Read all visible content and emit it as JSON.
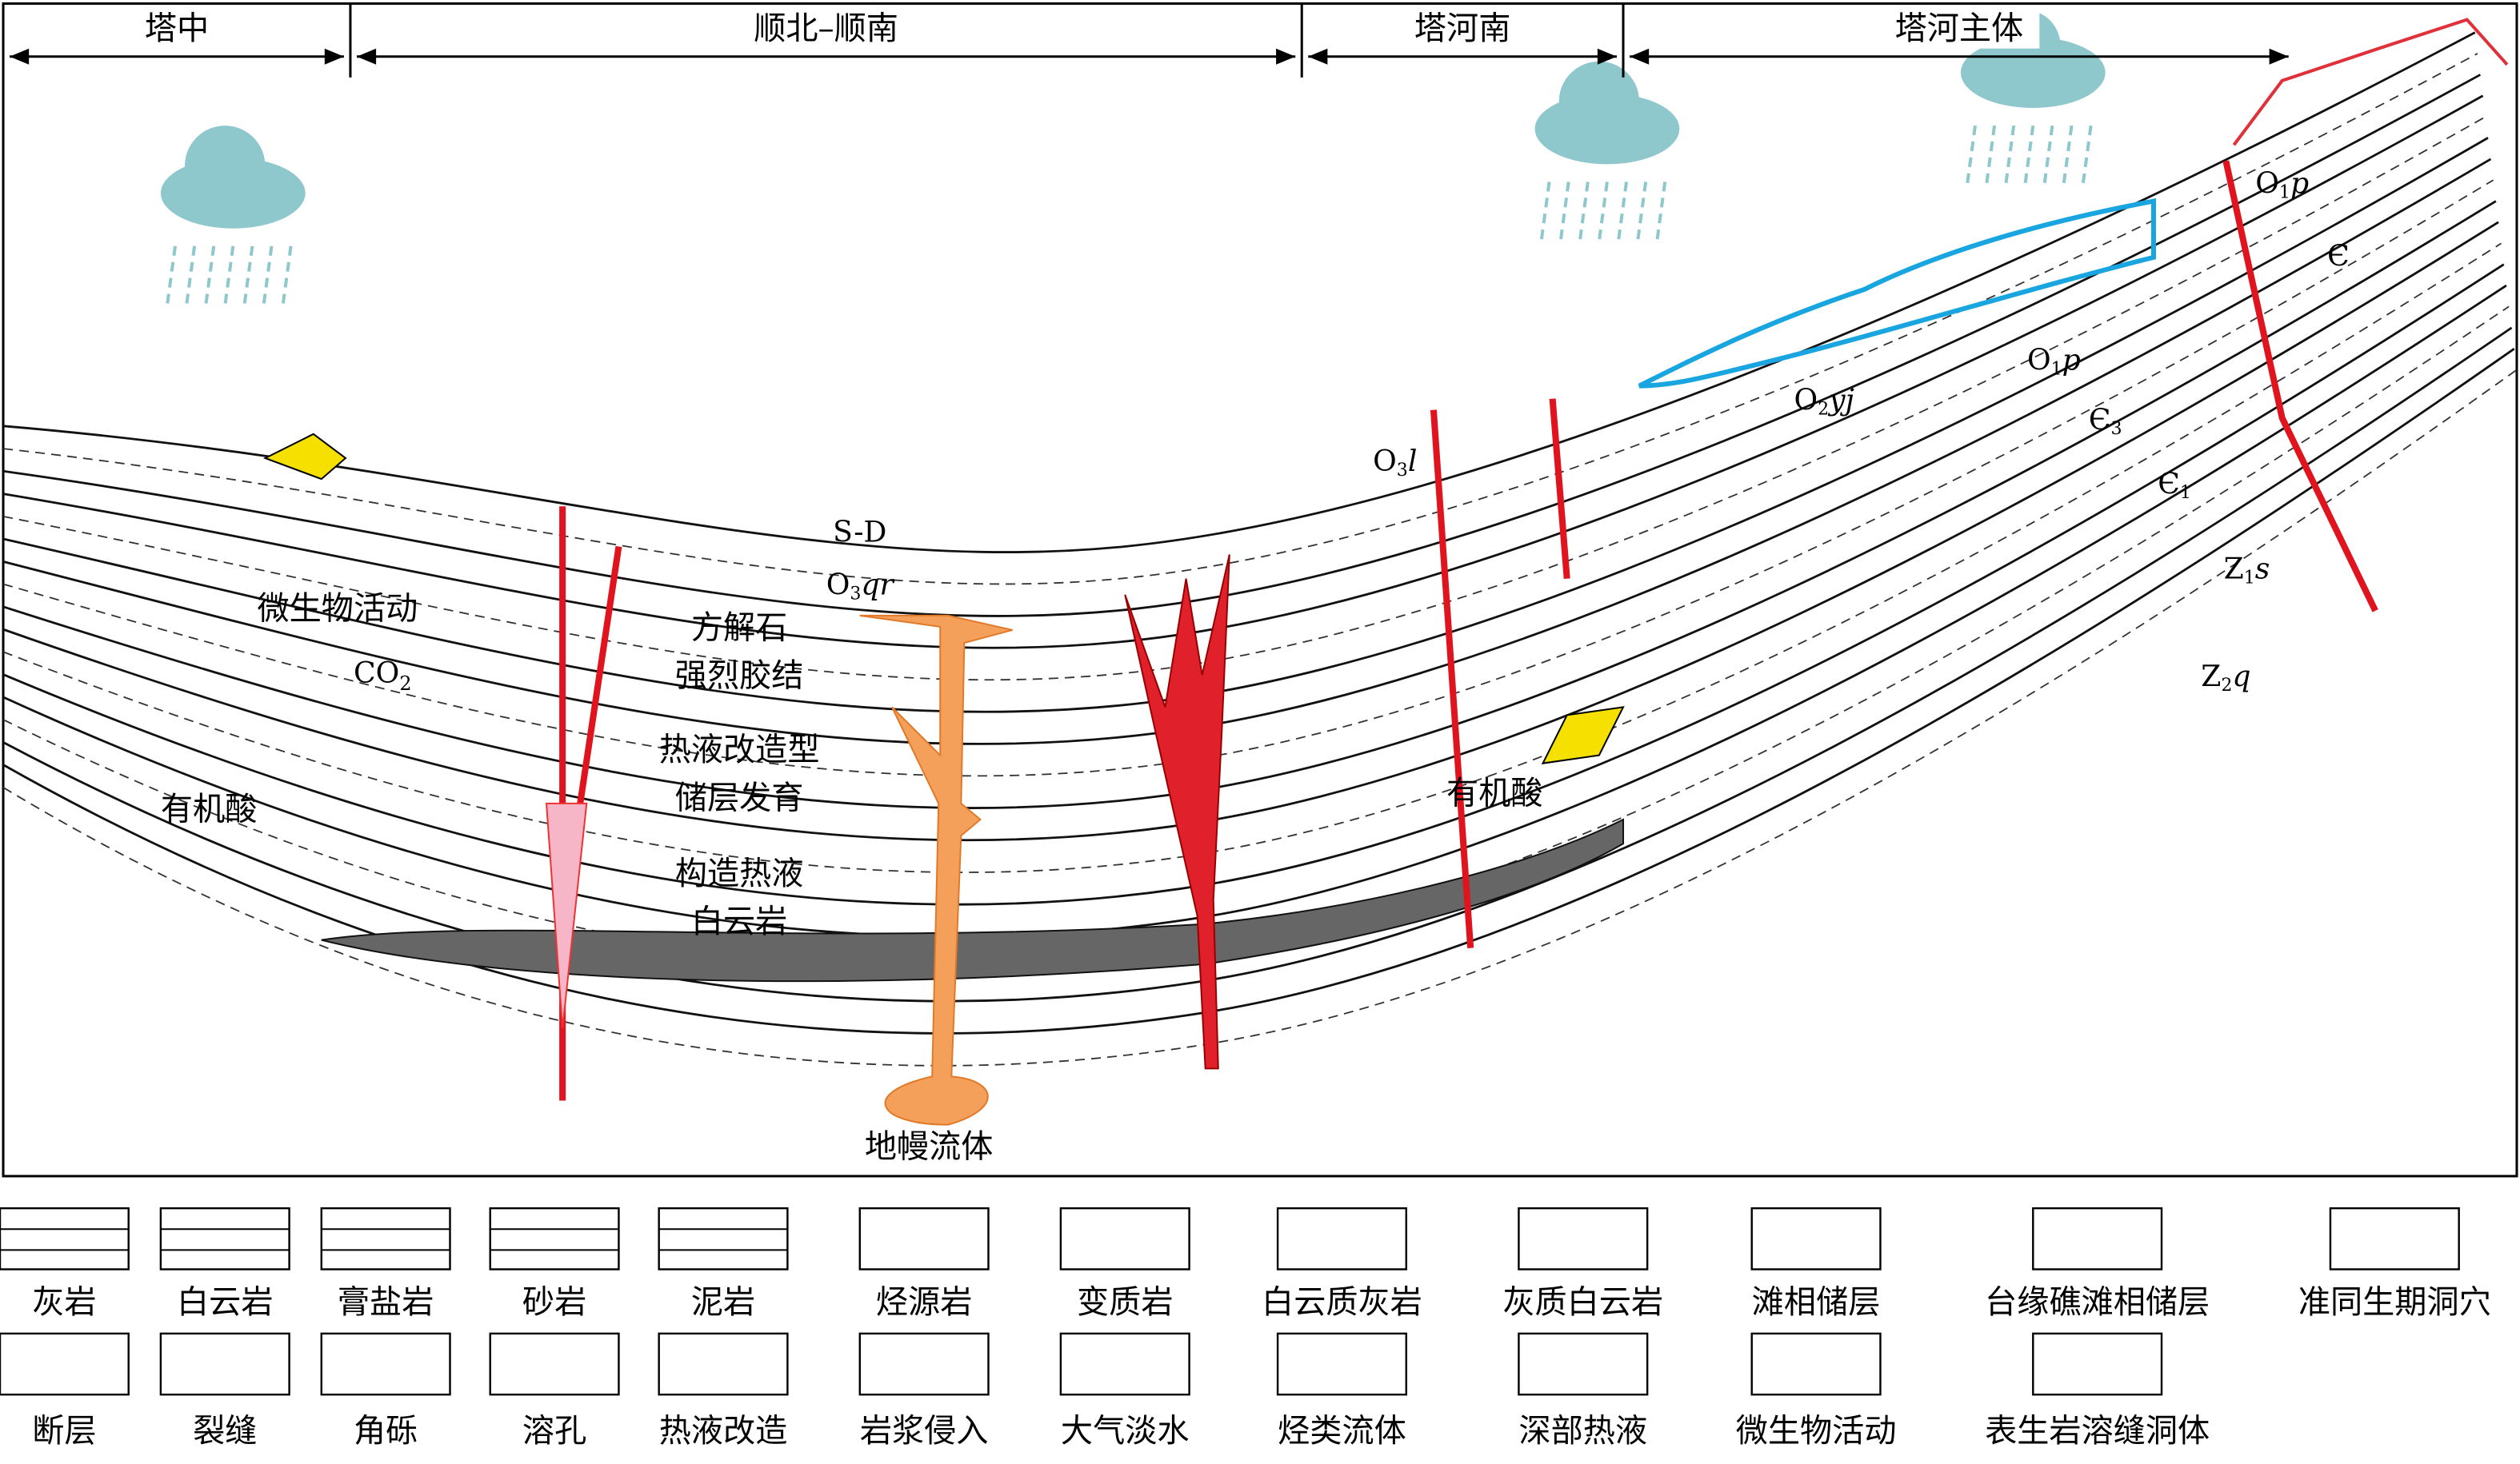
{
  "regions": [
    "塔中",
    "顺北–顺南",
    "塔河南",
    "塔河主体"
  ],
  "labels": {
    "microbial": "微生物活动",
    "co2": {
      "base": "CO",
      "sub": "2"
    },
    "organic_acid_left": "有机酸",
    "organic_acid_right": "有机酸",
    "calcite": [
      "方解石",
      "强烈胶结"
    ],
    "hydrothermal": [
      "热液改造型",
      "储层发育"
    ],
    "dolomite": [
      "构造热液",
      "白云岩"
    ],
    "mantle": "地幔流体"
  },
  "formations": [
    {
      "base": "S-D"
    },
    {
      "base": "O",
      "sub": "3",
      "tail": "qr"
    },
    {
      "base": "O",
      "sub": "3",
      "tail": "l"
    },
    {
      "base": "O",
      "sub": "2",
      "tail": "yj"
    },
    {
      "base": "O",
      "sub": "1",
      "tail": "p"
    },
    {
      "base": "O",
      "sub": "1",
      "tail": "p"
    },
    {
      "base": "Є",
      "sub": "3"
    },
    {
      "base": "Є",
      "sub": "1"
    },
    {
      "base": "Є"
    },
    {
      "base": "Z",
      "sub": "1",
      "tail": "s"
    },
    {
      "base": "Z",
      "sub": "2",
      "tail": "q"
    }
  ],
  "legend": [
    "灰岩",
    "白云岩",
    "膏盐岩",
    "砂岩",
    "泥岩",
    "烃源岩",
    "变质岩",
    "白云质灰岩",
    "灰质白云岩",
    "滩相储层",
    "台缘礁滩相储层",
    "准同生期洞穴",
    "断层",
    "裂缝",
    "角砾",
    "溶孔",
    "热液改造",
    "岩浆侵入",
    "大气淡水",
    "烃类流体",
    "深部热液",
    "微生物活动",
    "表生岩溶缝洞体"
  ]
}
